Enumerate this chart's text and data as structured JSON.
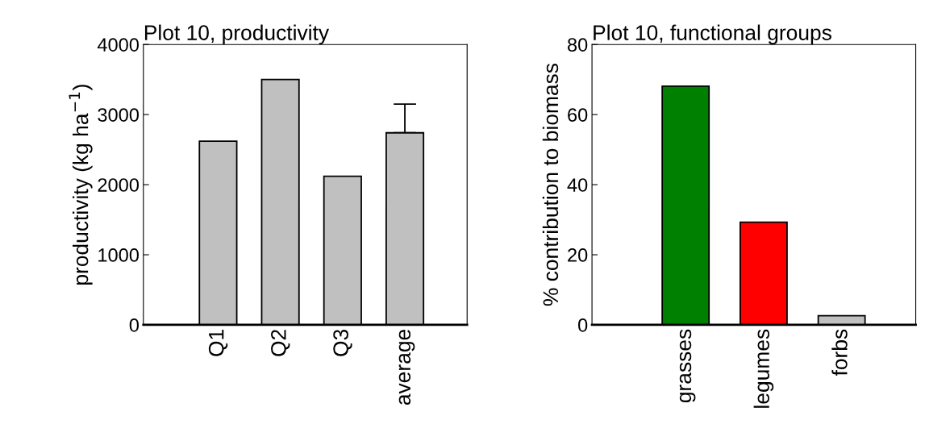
{
  "chart_data": [
    {
      "type": "bar",
      "title": "Plot 10, productivity",
      "ylabel": "productivity (kg ha$^{−1}$)",
      "categories": [
        "Q1",
        "Q2",
        "Q3",
        "average"
      ],
      "values": [
        2620,
        3500,
        2120,
        2740
      ],
      "errors": [
        null,
        null,
        null,
        [
          2740,
          3150
        ]
      ],
      "color": "#c0c0c0",
      "ylim": [
        0,
        4000
      ],
      "yticks": [
        0,
        1000,
        2000,
        3000,
        4000
      ],
      "grid": false,
      "legend": false
    },
    {
      "type": "bar",
      "title": "Plot 10, functional groups",
      "ylabel": "% contribution to biomass",
      "categories": [
        "grasses",
        "legumes",
        "forbs"
      ],
      "values": [
        68.1,
        29.3,
        2.6
      ],
      "colors": [
        "#008000",
        "#ff0000",
        "#c0c0c0"
      ],
      "ylim": [
        0,
        80
      ],
      "yticks": [
        0,
        20,
        40,
        60,
        80
      ],
      "grid": false,
      "legend": false
    }
  ]
}
